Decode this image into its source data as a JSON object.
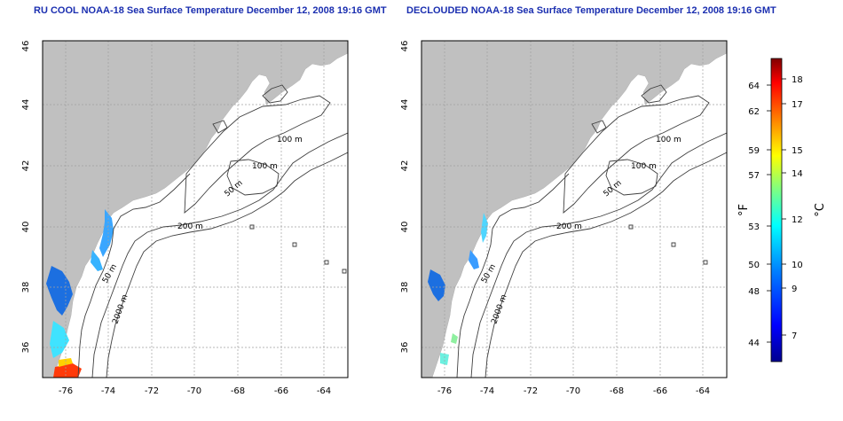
{
  "left_panel": {
    "title": "RU COOL NOAA-18 Sea Surface Temperature December 12, 2008 19:16 GMT",
    "x_ticks": [
      "-76",
      "-74",
      "-72",
      "-70",
      "-68",
      "-66",
      "-64"
    ],
    "y_ticks": [
      "46",
      "44",
      "42",
      "40",
      "38",
      "36"
    ],
    "contour_labels": [
      "100 m",
      "100 m",
      "50 m",
      "200 m",
      "50 m",
      "2000 m"
    ]
  },
  "right_panel": {
    "title": "DECLOUDED NOAA-18 Sea Surface Temperature December 12, 2008 19:16 GMT",
    "x_ticks": [
      "-76",
      "-74",
      "-72",
      "-70",
      "-68",
      "-66",
      "-64"
    ],
    "y_ticks": [
      "46",
      "44",
      "42",
      "40",
      "38",
      "36"
    ],
    "contour_labels": [
      "100 m",
      "100 m",
      "50 m",
      "200 m",
      "50 m",
      "2000 m"
    ]
  },
  "colorbar": {
    "fahrenheit_label": "°F",
    "celsius_label": "°C",
    "fahrenheit_ticks": [
      "64",
      "62",
      "59",
      "57",
      "53",
      "50",
      "48",
      "44"
    ],
    "celsius_ticks": [
      "18",
      "17",
      "15",
      "14",
      "12",
      "10",
      "9",
      "7"
    ]
  },
  "colors": {
    "land": "#c0c0c0",
    "ocean": "#ffffff",
    "grid": "#a0a0a0",
    "title": "#1b2fb0",
    "colorbar_stops": [
      "#00008f",
      "#0000ff",
      "#0080ff",
      "#00ffff",
      "#80ff80",
      "#ffff00",
      "#ff8000",
      "#ff0000",
      "#800000"
    ]
  }
}
